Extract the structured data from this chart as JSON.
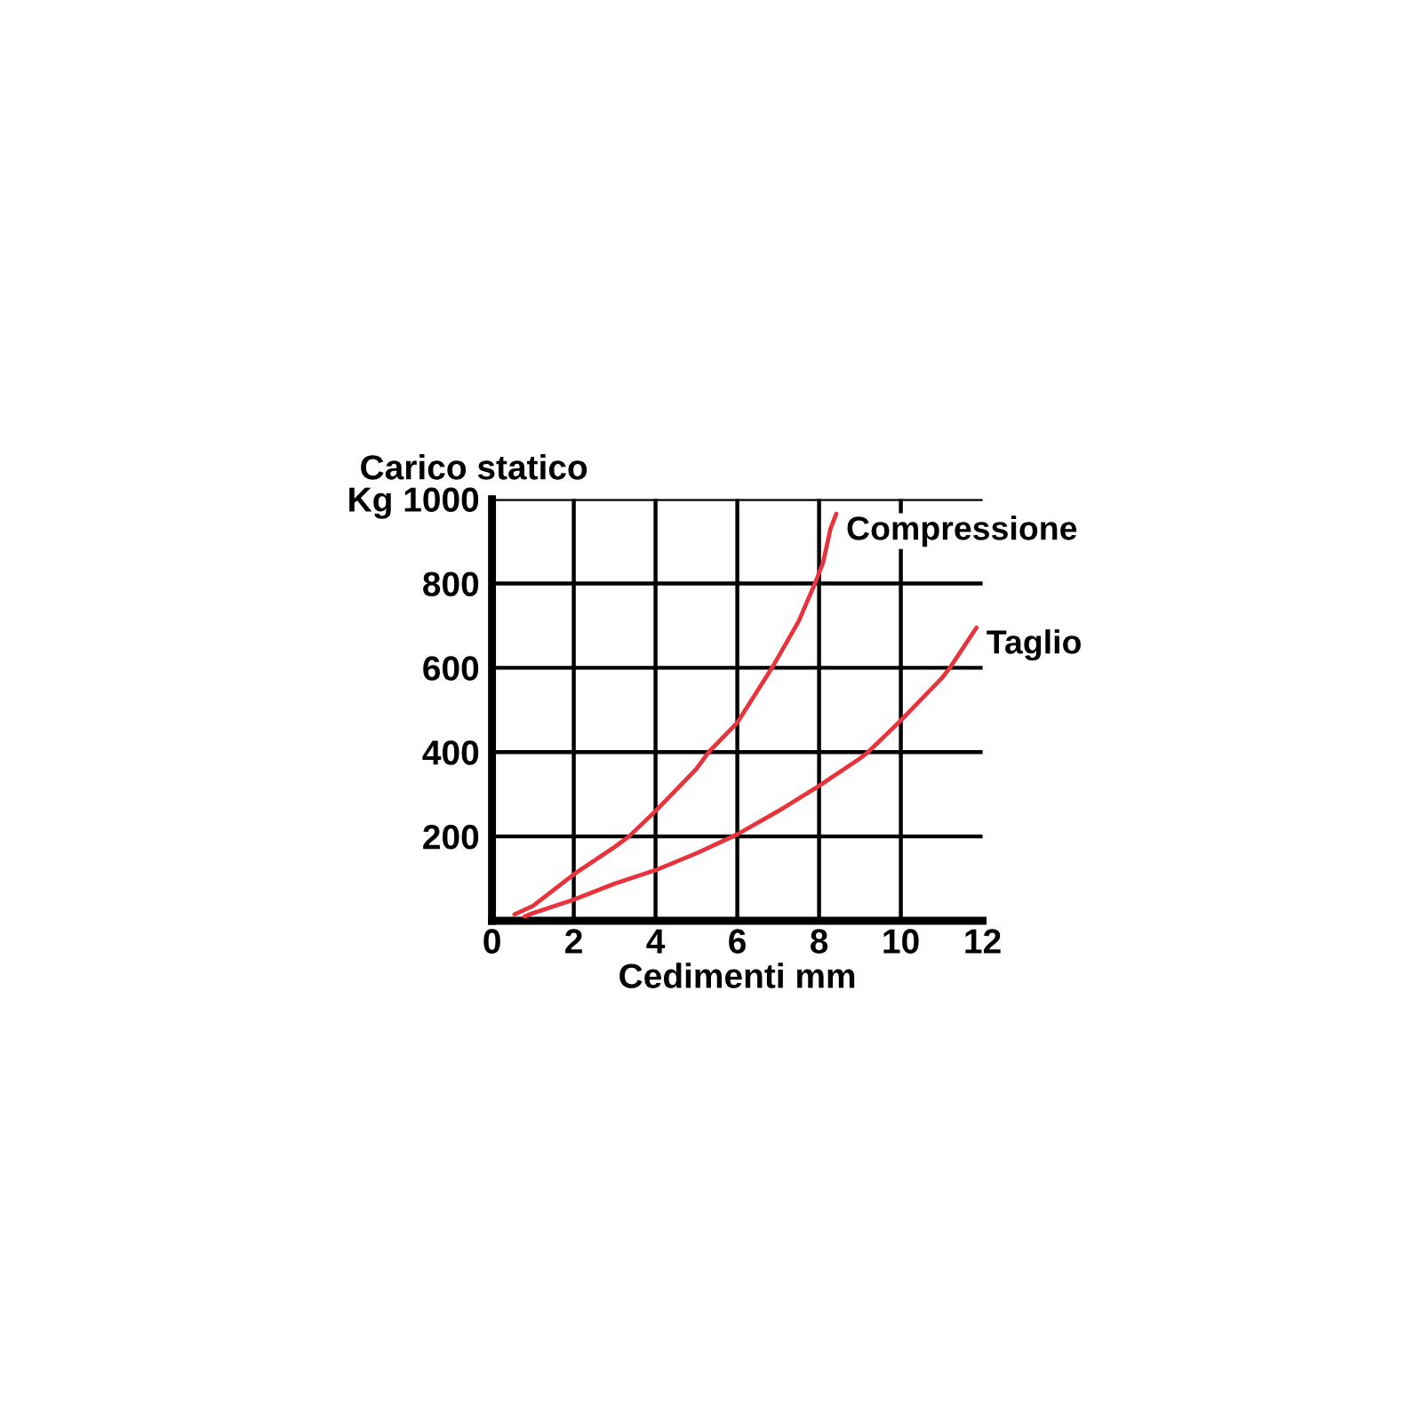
{
  "chart_data": {
    "type": "line",
    "ylabel": "Carico statico",
    "xlabel": "Cedimenti mm",
    "series": [
      {
        "name": "Compressione",
        "color": "#e8323c",
        "x": [
          0.55,
          1,
          2,
          3,
          3.35,
          4,
          5,
          5.3,
          6,
          6.85,
          7.5,
          7.9,
          8.1,
          8.28,
          8.42
        ],
        "values": [
          15,
          35,
          110,
          175,
          200,
          260,
          360,
          400,
          470,
          600,
          710,
          800,
          850,
          930,
          965
        ]
      },
      {
        "name": "Taglio",
        "color": "#e8323c",
        "x": [
          0.8,
          1,
          2,
          3,
          4,
          5,
          6,
          7,
          8,
          9,
          9.2,
          10,
          11,
          11.2,
          11.85
        ],
        "values": [
          10,
          18,
          50,
          88,
          120,
          160,
          205,
          260,
          320,
          385,
          400,
          475,
          575,
          600,
          695
        ]
      }
    ],
    "xlim": [
      0,
      12
    ],
    "ylim": [
      0,
      1000
    ],
    "xticks": [
      0,
      2,
      4,
      6,
      8,
      10,
      12
    ],
    "yticks": [
      200,
      400,
      600,
      800,
      {
        "value": 1000,
        "label": "Kg 1000"
      }
    ],
    "grid": true
  }
}
